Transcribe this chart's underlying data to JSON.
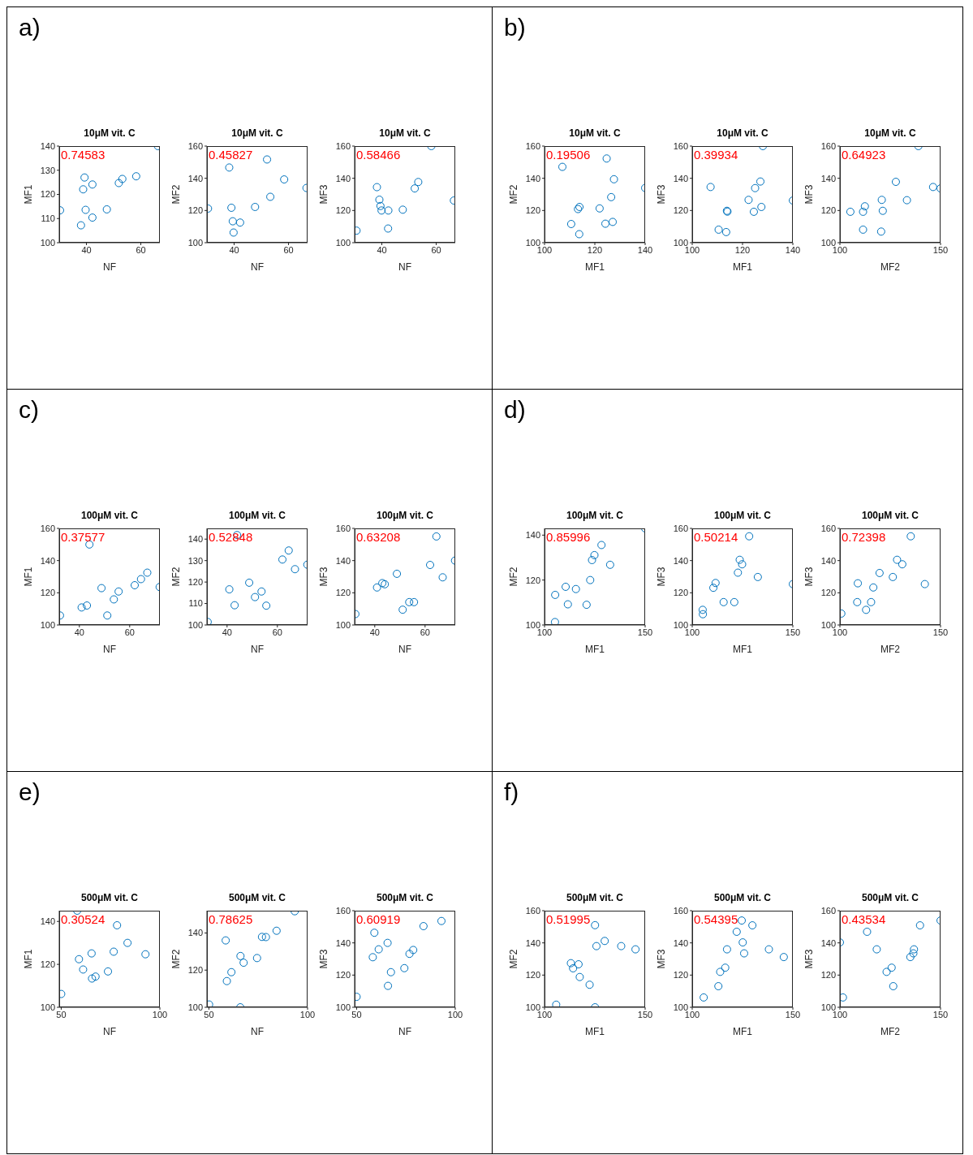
{
  "chart_data": [
    {
      "type": "scatter",
      "title": "10μM vit. C",
      "xlabel": "NF",
      "ylabel": "MF1",
      "color": "#0072bd",
      "marker": "circle",
      "xlim": [
        30,
        67
      ],
      "ylim": [
        100,
        140
      ],
      "xticks": [
        40,
        60
      ],
      "yticks": [
        100,
        110,
        120,
        130,
        140
      ],
      "annotations": [
        "a)",
        "0.74583"
      ],
      "x": [
        30.3,
        38.0,
        39.3,
        38.8,
        39.7,
        42.2,
        42.2,
        47.5,
        51.9,
        53.2,
        58.3,
        66.3
      ],
      "values": [
        113.4,
        107.2,
        127.0,
        122.1,
        113.6,
        124.1,
        110.4,
        113.8,
        124.7,
        126.4,
        127.5,
        140
      ]
    },
    {
      "type": "scatter",
      "title": "10μM vit. C",
      "xlabel": "NF",
      "ylabel": "MF2",
      "color": "#0072bd",
      "marker": "circle",
      "xlim": [
        30,
        67
      ],
      "ylim": [
        100,
        160
      ],
      "xticks": [
        40,
        60
      ],
      "yticks": [
        100,
        120,
        140,
        160
      ],
      "annotations": [
        "0.45827"
      ],
      "x": [
        30.4,
        38.2,
        39.0,
        39.5,
        39.8,
        42.2,
        47.7,
        52.1,
        53.3,
        58.4,
        66.6
      ],
      "values": [
        121.2,
        146.7,
        121.7,
        113.3,
        106.3,
        112.5,
        122.2,
        151.7,
        128.5,
        139.3,
        134.0
      ]
    },
    {
      "type": "scatter",
      "title": "10μM vit. C",
      "xlabel": "NF",
      "ylabel": "MF3",
      "color": "#0072bd",
      "marker": "circle",
      "xlim": [
        30,
        67
      ],
      "ylim": [
        100,
        160
      ],
      "xticks": [
        40,
        60
      ],
      "yticks": [
        100,
        120,
        140,
        160
      ],
      "annotations": [
        "0.58466"
      ],
      "x": [
        30.7,
        38.2,
        39.1,
        39.5,
        39.9,
        42.4,
        42.3,
        47.7,
        52.1,
        53.4,
        58.2,
        66.5
      ],
      "values": [
        107.5,
        134.5,
        126.7,
        122.8,
        120.0,
        120.0,
        108.8,
        120.5,
        133.7,
        137.7,
        160,
        126.2
      ]
    },
    {
      "type": "scatter",
      "title": "10μM vit. C",
      "xlabel": "MF1",
      "ylabel": "MF2",
      "color": "#0072bd",
      "marker": "circle",
      "xlim": [
        100,
        140
      ],
      "ylim": [
        100,
        160
      ],
      "xticks": [
        100,
        120,
        140
      ],
      "yticks": [
        100,
        120,
        140,
        160
      ],
      "annotations": [
        "b)",
        "0.19506"
      ],
      "x": [
        107.1,
        110.6,
        113.3,
        113.9,
        113.8,
        121.9,
        124.2,
        124.7,
        126.5,
        127.1,
        127.6,
        140
      ],
      "values": [
        147.1,
        111.6,
        120.9,
        122.2,
        105.3,
        121.3,
        111.8,
        152.3,
        128.3,
        112.9,
        139.4,
        134.0
      ]
    },
    {
      "type": "scatter",
      "title": "10μM vit. C",
      "xlabel": "MF1",
      "ylabel": "MF3",
      "color": "#0072bd",
      "marker": "circle",
      "xlim": [
        100,
        140
      ],
      "ylim": [
        100,
        160
      ],
      "xticks": [
        100,
        120,
        140
      ],
      "yticks": [
        100,
        120,
        140,
        160
      ],
      "annotations": [
        "0.39934"
      ],
      "x": [
        107.3,
        110.5,
        113.5,
        114.0,
        113.8,
        122.4,
        125.0,
        124.5,
        127.1,
        127.5,
        128.1,
        140
      ],
      "values": [
        134.6,
        108.1,
        106.6,
        119.3,
        119.8,
        126.6,
        133.9,
        119.2,
        138.0,
        122.2,
        160,
        126.2
      ]
    },
    {
      "type": "scatter",
      "title": "10μM vit. C",
      "xlabel": "MF2",
      "ylabel": "MF3",
      "color": "#0072bd",
      "marker": "circle",
      "xlim": [
        100,
        150
      ],
      "ylim": [
        100,
        160
      ],
      "xticks": [
        100,
        150
      ],
      "yticks": [
        100,
        120,
        140,
        160
      ],
      "annotations": [
        "0.64923"
      ],
      "x": [
        105.2,
        111.5,
        112.4,
        111.5,
        120.8,
        121.3,
        120.5,
        127.8,
        133.3,
        139.0,
        146.3,
        150
      ],
      "values": [
        119.2,
        119.2,
        122.6,
        108.1,
        126.6,
        119.8,
        106.9,
        137.8,
        126.4,
        160,
        134.6,
        133.7
      ]
    },
    {
      "type": "scatter",
      "title": "100μM vit. C",
      "xlabel": "NF",
      "ylabel": "MF1",
      "color": "#0072bd",
      "marker": "circle",
      "xlim": [
        32,
        72
      ],
      "ylim": [
        100,
        160
      ],
      "xticks": [
        40,
        60
      ],
      "yticks": [
        100,
        120,
        140,
        160
      ],
      "annotations": [
        "c)",
        "0.37577"
      ],
      "x": [
        32.3,
        40.9,
        43.0,
        44.0,
        48.8,
        51.1,
        53.7,
        55.6,
        62.0,
        64.5,
        67.0,
        71.9
      ],
      "values": [
        105.9,
        110.9,
        112.1,
        150.0,
        122.9,
        105.9,
        115.9,
        120.8,
        124.7,
        128.5,
        132.5,
        123.6
      ]
    },
    {
      "type": "scatter",
      "title": "100μM vit. C",
      "xlabel": "NF",
      "ylabel": "MF2",
      "color": "#0072bd",
      "marker": "circle",
      "xlim": [
        32,
        72
      ],
      "ylim": [
        100,
        145
      ],
      "xticks": [
        40,
        60
      ],
      "yticks": [
        100,
        110,
        120,
        130,
        140
      ],
      "annotations": [
        "0.52848"
      ],
      "x": [
        32.3,
        40.9,
        43.0,
        44.0,
        48.8,
        51.1,
        53.7,
        55.6,
        62.0,
        64.5,
        67.0,
        71.9
      ],
      "values": [
        101.4,
        116.6,
        109.2,
        141.9,
        119.7,
        113.0,
        115.6,
        109.0,
        130.5,
        134.7,
        126.0,
        128.1
      ]
    },
    {
      "type": "scatter",
      "title": "100μM vit. C",
      "xlabel": "NF",
      "ylabel": "MF3",
      "color": "#0072bd",
      "marker": "circle",
      "xlim": [
        32,
        72
      ],
      "ylim": [
        100,
        160
      ],
      "xticks": [
        40,
        60
      ],
      "yticks": [
        100,
        120,
        140,
        160
      ],
      "annotations": [
        "0.63208"
      ],
      "x": [
        32.3,
        40.9,
        43.0,
        44.0,
        48.8,
        51.1,
        53.7,
        55.6,
        62.0,
        64.5,
        67.0,
        71.9
      ],
      "values": [
        106.8,
        123.3,
        126.0,
        125.3,
        131.8,
        109.5,
        114.2,
        114.2,
        137.3,
        155.0,
        129.6,
        140.0
      ]
    },
    {
      "type": "scatter",
      "title": "100μM vit. C",
      "xlabel": "MF1",
      "ylabel": "MF2",
      "color": "#0072bd",
      "marker": "circle",
      "xlim": [
        100,
        150
      ],
      "ylim": [
        100,
        143
      ],
      "xticks": [
        100,
        150
      ],
      "yticks": [
        100,
        120,
        140
      ],
      "annotations": [
        "d)",
        "0.85996"
      ],
      "x": [
        105.2,
        105.3,
        110.5,
        111.6,
        115.6,
        120.9,
        122.7,
        123.6,
        124.8,
        128.3,
        132.6,
        150
      ],
      "values": [
        101.3,
        113.4,
        117.0,
        109.2,
        116.0,
        109.0,
        120.0,
        128.9,
        131.1,
        135.6,
        126.8,
        143
      ]
    },
    {
      "type": "scatter",
      "title": "100μM vit. C",
      "xlabel": "MF1",
      "ylabel": "MF3",
      "color": "#0072bd",
      "marker": "circle",
      "xlim": [
        100,
        150
      ],
      "ylim": [
        100,
        160
      ],
      "xticks": [
        100,
        150
      ],
      "yticks": [
        100,
        120,
        140,
        160
      ],
      "annotations": [
        "0.50214"
      ],
      "x": [
        105.2,
        105.3,
        110.5,
        111.6,
        115.6,
        120.9,
        122.7,
        123.6,
        124.8,
        128.3,
        132.6,
        150
      ],
      "values": [
        109.4,
        106.7,
        123.1,
        126.1,
        114.2,
        114.2,
        132.5,
        140.5,
        137.7,
        155.1,
        129.8,
        125.4
      ]
    },
    {
      "type": "scatter",
      "title": "100μM vit. C",
      "xlabel": "MF2",
      "ylabel": "MF3",
      "color": "#0072bd",
      "marker": "circle",
      "xlim": [
        100,
        150
      ],
      "ylim": [
        100,
        160
      ],
      "xticks": [
        100,
        150
      ],
      "yticks": [
        100,
        120,
        140,
        160
      ],
      "annotations": [
        "0.72398"
      ],
      "x": [
        100.7,
        108.9,
        108.6,
        113.0,
        115.5,
        116.6,
        119.7,
        126.3,
        128.4,
        131.0,
        135.2,
        142.2
      ],
      "values": [
        107.1,
        125.9,
        114.2,
        109.4,
        114.2,
        123.3,
        132.3,
        129.8,
        140.5,
        137.7,
        155.1,
        125.4
      ]
    },
    {
      "type": "scatter",
      "title": "500μM vit. C",
      "xlabel": "NF",
      "ylabel": "MF1",
      "color": "#0072bd",
      "marker": "circle",
      "xlim": [
        49,
        100
      ],
      "ylim": [
        100,
        145
      ],
      "xticks": [
        50,
        100
      ],
      "yticks": [
        100,
        120,
        140
      ],
      "annotations": [
        "e)",
        "0.30524"
      ],
      "x": [
        50.0,
        58.1,
        59.0,
        61.1,
        65.4,
        65.6,
        67.4,
        73.7,
        76.6,
        78.3,
        83.6,
        92.7
      ],
      "values": [
        106.2,
        145,
        122.4,
        117.6,
        125.1,
        113.4,
        114.3,
        116.7,
        125.9,
        138.2,
        130.0,
        124.7
      ]
    },
    {
      "type": "scatter",
      "title": "500μM vit. C",
      "xlabel": "NF",
      "ylabel": "MF2",
      "color": "#0072bd",
      "marker": "circle",
      "xlim": [
        49,
        100
      ],
      "ylim": [
        100,
        152
      ],
      "xticks": [
        50,
        100
      ],
      "yticks": [
        100,
        120,
        140
      ],
      "annotations": [
        "0.78625"
      ],
      "x": [
        50.1,
        58.5,
        59.1,
        61.4,
        65.9,
        66.0,
        67.6,
        74.4,
        76.9,
        78.9,
        84.3,
        93.5
      ],
      "values": [
        101.5,
        136.0,
        114.1,
        118.9,
        100,
        127.6,
        124.0,
        126.5,
        137.9,
        137.8,
        141.2,
        151.7
      ]
    },
    {
      "type": "scatter",
      "title": "500μM vit. C",
      "xlabel": "NF",
      "ylabel": "MF3",
      "color": "#0072bd",
      "marker": "circle",
      "xlim": [
        49,
        100
      ],
      "ylim": [
        100,
        160
      ],
      "xticks": [
        50,
        100
      ],
      "yticks": [
        100,
        120,
        140,
        160
      ],
      "annotations": [
        "0.60919"
      ],
      "x": [
        50.0,
        58.2,
        59.0,
        61.2,
        65.7,
        65.9,
        67.4,
        74.2,
        76.8,
        78.7,
        83.9,
        93.0
      ],
      "values": [
        106.5,
        131.1,
        146.3,
        136.0,
        140.0,
        113.3,
        121.8,
        124.3,
        133.2,
        135.6,
        150.4,
        153.6
      ]
    },
    {
      "type": "scatter",
      "title": "500μM vit. C",
      "xlabel": "MF1",
      "ylabel": "MF2",
      "color": "#0072bd",
      "marker": "circle",
      "xlim": [
        100,
        150
      ],
      "ylim": [
        100,
        160
      ],
      "xticks": [
        100,
        150
      ],
      "yticks": [
        100,
        120,
        140,
        160
      ],
      "annotations": [
        "f)",
        "0.51995"
      ],
      "x": [
        105.8,
        113.1,
        114.2,
        116.9,
        117.5,
        122.4,
        125.1,
        125.1,
        125.8,
        129.9,
        138.1,
        145.2
      ],
      "values": [
        101.6,
        127.4,
        124.2,
        126.7,
        118.8,
        114.0,
        151.0,
        100,
        138.0,
        141.2,
        138.0,
        136.0
      ]
    },
    {
      "type": "scatter",
      "title": "500μM vit. C",
      "xlabel": "MF1",
      "ylabel": "MF3",
      "color": "#0072bd",
      "marker": "circle",
      "xlim": [
        100,
        150
      ],
      "ylim": [
        100,
        160
      ],
      "xticks": [
        100,
        150
      ],
      "yticks": [
        100,
        120,
        140,
        160
      ],
      "annotations": [
        "0.54395"
      ],
      "x": [
        105.7,
        113.0,
        113.9,
        116.4,
        117.3,
        122.1,
        124.6,
        125.1,
        125.8,
        129.9,
        138.1,
        145.5
      ],
      "values": [
        106.1,
        113.1,
        122.0,
        124.6,
        136.0,
        146.9,
        153.9,
        140.3,
        133.5,
        150.9,
        136.0,
        131.2
      ]
    },
    {
      "type": "scatter",
      "title": "500μM vit. C",
      "xlabel": "MF2",
      "ylabel": "MF3",
      "color": "#0072bd",
      "marker": "circle",
      "xlim": [
        100,
        150
      ],
      "ylim": [
        100,
        160
      ],
      "xticks": [
        100,
        150
      ],
      "yticks": [
        100,
        120,
        140,
        160
      ],
      "annotations": [
        "0.43534"
      ],
      "x": [
        100.0,
        101.5,
        113.5,
        118.3,
        123.2,
        125.7,
        126.5,
        135.0,
        136.5,
        136.8,
        139.8,
        150
      ],
      "values": [
        140.3,
        106.1,
        146.9,
        136.0,
        122.0,
        124.6,
        113.1,
        131.2,
        133.5,
        136.0,
        150.9,
        153.9
      ]
    }
  ]
}
